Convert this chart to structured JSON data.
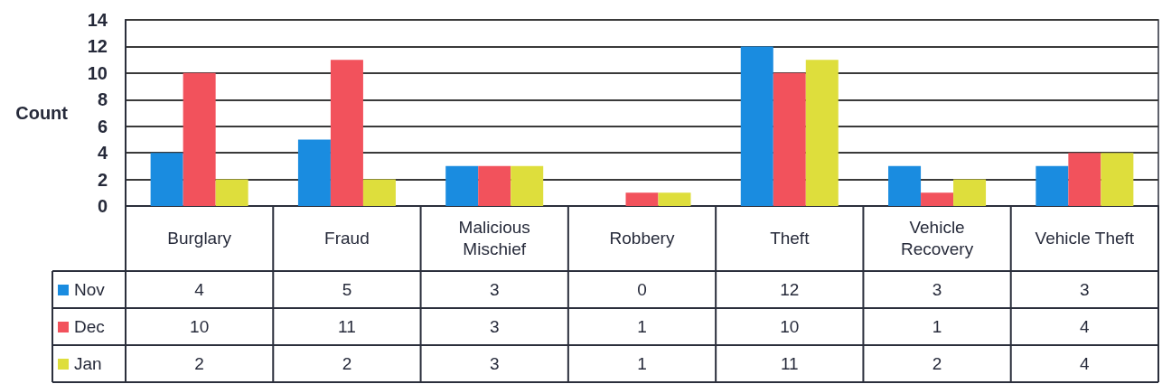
{
  "chart_data": {
    "type": "bar",
    "categories": [
      "Burglary",
      "Fraud",
      "Malicious Mischief",
      "Robbery",
      "Theft",
      "Vehicle Recovery",
      "Vehicle Theft"
    ],
    "series": [
      {
        "name": "Nov",
        "color": "#1a8ce0",
        "values": [
          4,
          5,
          3,
          0,
          12,
          3,
          3
        ]
      },
      {
        "name": "Dec",
        "color": "#f2525c",
        "values": [
          10,
          11,
          3,
          1,
          10,
          1,
          4
        ]
      },
      {
        "name": "Jan",
        "color": "#dede3c",
        "values": [
          2,
          2,
          3,
          1,
          11,
          2,
          4
        ]
      }
    ],
    "ylabel": "Count",
    "ylim": [
      0,
      14
    ],
    "yticks": [
      0,
      2,
      4,
      6,
      8,
      10,
      12,
      14
    ],
    "grid": "y",
    "legend": "bottom left",
    "data_labels": true
  }
}
